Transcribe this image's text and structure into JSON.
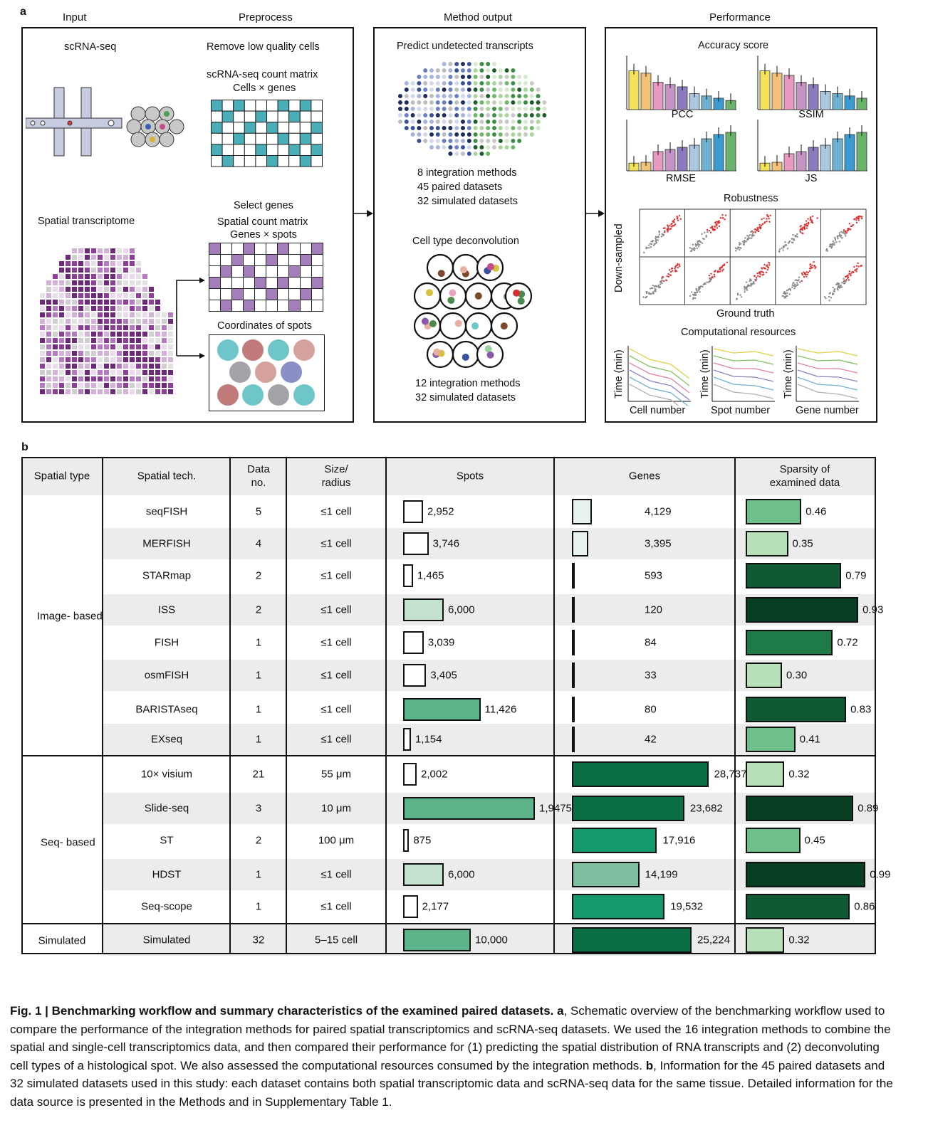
{
  "panel_a": {
    "letter": "a",
    "sections": {
      "input": "Input",
      "preprocess": "Preprocess",
      "method_output": "Method output",
      "performance": "Performance"
    },
    "input": {
      "scrna": "scRNA-seq",
      "spatial": "Spatial transcriptome"
    },
    "preprocess": {
      "remove": "Remove low quality cells",
      "sc_matrix_line1": "scRNA-seq count matrix",
      "sc_matrix_line2": "Cells × genes",
      "select": "Select genes",
      "sp_matrix_line1": "Spatial count matrix",
      "sp_matrix_line2": "Genes × spots",
      "coords": "Coordinates of spots"
    },
    "method": {
      "predict": "Predict undetected transcripts",
      "pred_stats": [
        "8 integration methods",
        "45 paired datasets",
        "32 simulated datasets"
      ],
      "deconv": "Cell type deconvolution",
      "deconv_stats": [
        "12 integration methods",
        "32 simulated datasets"
      ]
    },
    "performance": {
      "accuracy": "Accuracy score",
      "metrics": [
        "PCC",
        "SSIM",
        "RMSE",
        "JS"
      ],
      "robustness": "Robustness",
      "down": "Down-sampled",
      "truth": "Ground truth",
      "comp": "Computational resources",
      "time": "Time (min)",
      "x_labels": [
        "Cell number",
        "Spot number",
        "Gene number"
      ]
    },
    "colors": [
      "#f2e35a",
      "#f3c27a",
      "#e99ac0",
      "#c594c5",
      "#8a7bbf",
      "#a9c8e0",
      "#6fb0cf",
      "#3a9bd1",
      "#69b36b"
    ]
  },
  "panel_b": {
    "letter": "b",
    "headers": [
      "Spatial type",
      "Spatial tech.",
      "Data no.",
      "Size/ radius",
      "Spots",
      "Genes",
      "Sparsity of examined data"
    ],
    "groups": [
      "Image- based",
      "Seq- based",
      "Simulated"
    ],
    "rows": [
      {
        "tech": "seqFISH",
        "n": "5",
        "size": "≤1 cell",
        "spots": "2,952",
        "genes": "4,129",
        "sparsity": "0.46"
      },
      {
        "tech": "MERFISH",
        "n": "4",
        "size": "≤1 cell",
        "spots": "3,746",
        "genes": "3,395",
        "sparsity": "0.35"
      },
      {
        "tech": "STARmap",
        "n": "2",
        "size": "≤1 cell",
        "spots": "1,465",
        "genes": "593",
        "sparsity": "0.79"
      },
      {
        "tech": "ISS",
        "n": "2",
        "size": "≤1 cell",
        "spots": "6,000",
        "genes": "120",
        "sparsity": "0.93"
      },
      {
        "tech": "FISH",
        "n": "1",
        "size": "≤1 cell",
        "spots": "3,039",
        "genes": "84",
        "sparsity": "0.72"
      },
      {
        "tech": "osmFISH",
        "n": "1",
        "size": "≤1 cell",
        "spots": "3,405",
        "genes": "33",
        "sparsity": "0.30"
      },
      {
        "tech": "BARISTAseq",
        "n": "1",
        "size": "≤1 cell",
        "spots": "11,426",
        "genes": "80",
        "sparsity": "0.83"
      },
      {
        "tech": "EXseq",
        "n": "1",
        "size": "≤1 cell",
        "spots": "1,154",
        "genes": "42",
        "sparsity": "0.41"
      },
      {
        "tech": "10× visium",
        "n": "21",
        "size": "55 μm",
        "spots": "2,002",
        "genes": "28,737",
        "sparsity": "0.32"
      },
      {
        "tech": "Slide-seq",
        "n": "3",
        "size": "10 μm",
        "spots": "1,9475",
        "genes": "23,682",
        "sparsity": "0.89"
      },
      {
        "tech": "ST",
        "n": "2",
        "size": "100 μm",
        "spots": "875",
        "genes": "17,916",
        "sparsity": "0.45"
      },
      {
        "tech": "HDST",
        "n": "1",
        "size": "≤1 cell",
        "spots": "6,000",
        "genes": "14,199",
        "sparsity": "0.99"
      },
      {
        "tech": "Seq-scope",
        "n": "1",
        "size": "≤1 cell",
        "spots": "2,177",
        "genes": "19,532",
        "sparsity": "0.86"
      },
      {
        "tech": "Simulated",
        "n": "32",
        "size": "5–15 cell",
        "spots": "10,000",
        "genes": "25,224",
        "sparsity": "0.32"
      }
    ]
  },
  "chart_data": {
    "type": "table",
    "title": "Information for the 45 paired datasets and 32 simulated datasets",
    "columns": [
      "Spatial tech.",
      "Data no.",
      "Size/radius",
      "Spots",
      "Genes",
      "Sparsity"
    ],
    "series": [
      {
        "name": "Spots",
        "values": [
          2952,
          3746,
          1465,
          6000,
          3039,
          3405,
          11426,
          1154,
          2002,
          19475,
          875,
          6000,
          2177,
          10000
        ]
      },
      {
        "name": "Genes",
        "values": [
          4129,
          3395,
          593,
          120,
          84,
          33,
          80,
          42,
          28737,
          23682,
          17916,
          14199,
          19532,
          25224
        ]
      },
      {
        "name": "Sparsity",
        "values": [
          0.46,
          0.35,
          0.79,
          0.93,
          0.72,
          0.3,
          0.83,
          0.41,
          0.32,
          0.89,
          0.45,
          0.99,
          0.86,
          0.32
        ]
      }
    ]
  },
  "caption": {
    "fig": "Fig. 1 | Benchmarking workflow and summary characteristics of the examined paired datasets.",
    "a_label": "a",
    "a_text": ", Schematic overview of the benchmarking workflow used to compare the performance of the integration methods for paired spatial transcriptomics and scRNA-seq datasets. We used the 16 integration methods to combine the spatial and single-cell transcriptomics data, and then compared their performance for (1) predicting the spatial distribution of RNA transcripts and (2) deconvoluting cell types of a histological spot. We also assessed the computational resources consumed by the integration methods.",
    "b_label": "b",
    "b_text": ", Information for the 45 paired datasets and 32 simulated datasets used in this study: each dataset contains both spatial transcriptomic data and scRNA-seq data for the same tissue. Detailed information for the data source is presented in the Methods and in Supplementary Table 1."
  }
}
